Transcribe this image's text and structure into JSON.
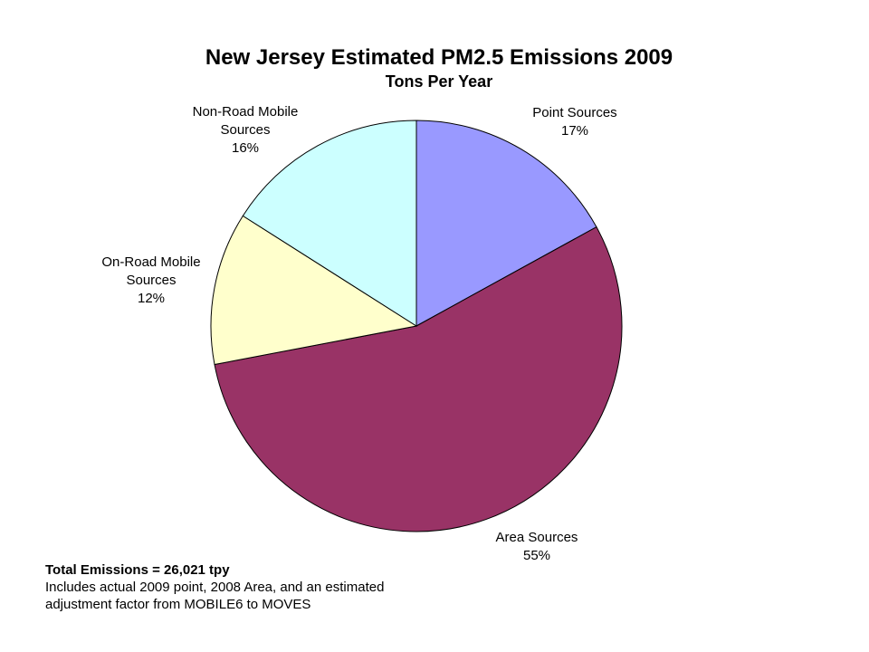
{
  "chart_data": {
    "type": "pie",
    "title": "New Jersey Estimated PM2.5 Emissions 2009",
    "subtitle": "Tons Per Year",
    "slices": [
      {
        "label_lines": [
          "Point Sources"
        ],
        "label": "Point Sources",
        "value": 17,
        "value_label": "17%",
        "color": "#9999FF"
      },
      {
        "label_lines": [
          "Area Sources"
        ],
        "label": "Area Sources",
        "value": 55,
        "value_label": "55%",
        "color": "#993366"
      },
      {
        "label_lines": [
          "On-Road Mobile",
          "Sources"
        ],
        "label": "On-Road Mobile Sources",
        "value": 12,
        "value_label": "12%",
        "color": "#FFFFCC"
      },
      {
        "label_lines": [
          "Non-Road Mobile",
          "Sources"
        ],
        "label": "Non-Road Mobile Sources",
        "value": 16,
        "value_label": "16%",
        "color": "#CCFFFF"
      }
    ],
    "start_angle": "12 o'clock",
    "direction": "clockwise",
    "legend": "none"
  },
  "footnote": {
    "total": "Total Emissions = 26,021 tpy",
    "lines": [
      "Includes actual 2009 point, 2008 Area, and an estimated",
      "adjustment factor from MOBILE6 to MOVES"
    ]
  }
}
